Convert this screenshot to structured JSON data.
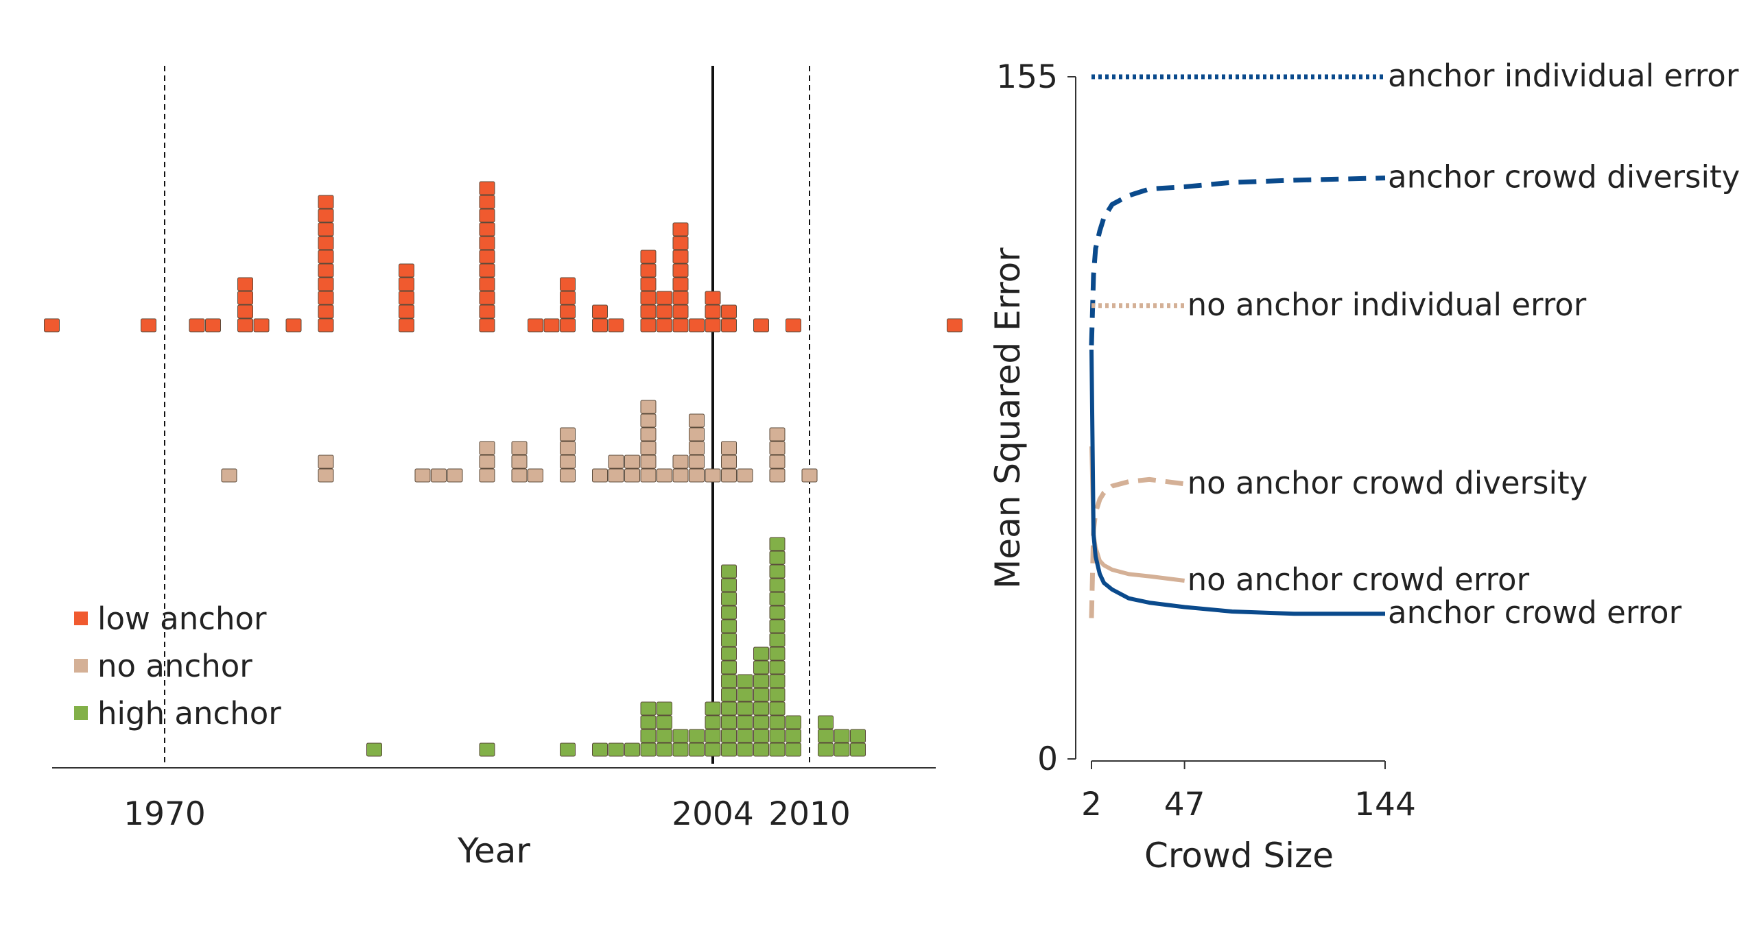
{
  "colors": {
    "low_anchor": "#f05a2f",
    "no_anchor": "#d4b096",
    "high_anchor": "#82b048",
    "anchor_blue": "#0a4a8c",
    "axis": "#333333"
  },
  "chart_data": [
    {
      "type": "dot-histogram",
      "xlabel": "Year",
      "ylabel": "",
      "xticks": [
        1970,
        2004,
        2010
      ],
      "reference_lines": [
        {
          "value": 1970,
          "style": "dashed"
        },
        {
          "value": 2004,
          "style": "solid"
        },
        {
          "value": 2010,
          "style": "dashed"
        }
      ],
      "legend": {
        "position": "bottom-left",
        "entries": [
          "low anchor",
          "no anchor",
          "high anchor"
        ]
      },
      "series": [
        {
          "name": "low anchor",
          "color_key": "low_anchor",
          "counts": [
            [
              1963,
              1
            ],
            [
              1969,
              1
            ],
            [
              1972,
              1
            ],
            [
              1973,
              1
            ],
            [
              1975,
              4
            ],
            [
              1976,
              1
            ],
            [
              1978,
              1
            ],
            [
              1980,
              10
            ],
            [
              1985,
              5
            ],
            [
              1990,
              11
            ],
            [
              1993,
              1
            ],
            [
              1994,
              1
            ],
            [
              1995,
              4
            ],
            [
              1997,
              2
            ],
            [
              1998,
              1
            ],
            [
              2000,
              6
            ],
            [
              2001,
              3
            ],
            [
              2002,
              8
            ],
            [
              2003,
              1
            ],
            [
              2004,
              3
            ],
            [
              2005,
              2
            ],
            [
              2007,
              1
            ],
            [
              2009,
              1
            ],
            [
              2019,
              1
            ]
          ]
        },
        {
          "name": "no anchor",
          "color_key": "no_anchor",
          "counts": [
            [
              1974,
              1
            ],
            [
              1980,
              2
            ],
            [
              1986,
              1
            ],
            [
              1987,
              1
            ],
            [
              1988,
              1
            ],
            [
              1990,
              3
            ],
            [
              1992,
              3
            ],
            [
              1993,
              1
            ],
            [
              1995,
              4
            ],
            [
              1997,
              1
            ],
            [
              1998,
              2
            ],
            [
              1999,
              2
            ],
            [
              2000,
              6
            ],
            [
              2001,
              1
            ],
            [
              2002,
              2
            ],
            [
              2003,
              5
            ],
            [
              2004,
              1
            ],
            [
              2005,
              3
            ],
            [
              2006,
              1
            ],
            [
              2008,
              4
            ],
            [
              2010,
              1
            ]
          ]
        },
        {
          "name": "high anchor",
          "color_key": "high_anchor",
          "counts": [
            [
              1983,
              1
            ],
            [
              1990,
              1
            ],
            [
              1995,
              1
            ],
            [
              1997,
              1
            ],
            [
              1998,
              1
            ],
            [
              1999,
              1
            ],
            [
              2000,
              4
            ],
            [
              2001,
              4
            ],
            [
              2002,
              2
            ],
            [
              2003,
              2
            ],
            [
              2004,
              4
            ],
            [
              2005,
              14
            ],
            [
              2006,
              6
            ],
            [
              2007,
              8
            ],
            [
              2008,
              16
            ],
            [
              2009,
              3
            ],
            [
              2011,
              3
            ],
            [
              2012,
              2
            ],
            [
              2013,
              2
            ]
          ]
        }
      ]
    },
    {
      "type": "line",
      "xlabel": "Crowd Size",
      "ylabel": "Mean Squared Error",
      "xticks": [
        2,
        47,
        144
      ],
      "yticks": [
        0,
        155
      ],
      "xlim": [
        2,
        144
      ],
      "ylim": [
        0,
        155
      ],
      "series": [
        {
          "name": "anchor individual error",
          "style": "dotted",
          "color_key": "anchor_blue",
          "x": [
            2,
            144
          ],
          "y": [
            155,
            155
          ]
        },
        {
          "name": "anchor crowd diversity",
          "style": "dashed",
          "color_key": "anchor_blue",
          "x": [
            2,
            3,
            4,
            6,
            8,
            12,
            20,
            30,
            47,
            70,
            100,
            144
          ],
          "y": [
            94,
            110,
            116,
            120,
            123,
            126,
            128,
            129.5,
            130,
            131,
            131.5,
            132
          ]
        },
        {
          "name": "no anchor individual error",
          "style": "dotted",
          "color_key": "no_anchor",
          "x": [
            2,
            47
          ],
          "y": [
            103,
            103
          ]
        },
        {
          "name": "no anchor crowd diversity",
          "style": "dashed",
          "color_key": "no_anchor",
          "x": [
            2,
            3,
            4,
            6,
            8,
            12,
            20,
            30,
            47
          ],
          "y": [
            32,
            52,
            56,
            59,
            60.5,
            62,
            63,
            63.5,
            62.5
          ]
        },
        {
          "name": "no anchor crowd error",
          "style": "solid",
          "color_key": "no_anchor",
          "x": [
            2,
            3,
            4,
            6,
            8,
            12,
            20,
            30,
            47
          ],
          "y": [
            71,
            51,
            48,
            45,
            44,
            43,
            42,
            41.5,
            40.5
          ]
        },
        {
          "name": "anchor crowd error",
          "style": "solid",
          "color_key": "anchor_blue",
          "x": [
            2,
            3,
            4,
            6,
            8,
            12,
            20,
            30,
            47,
            70,
            100,
            144
          ],
          "y": [
            93,
            51,
            46,
            42,
            40,
            38.5,
            36.5,
            35.5,
            34.5,
            33.5,
            33,
            33
          ]
        }
      ]
    }
  ]
}
